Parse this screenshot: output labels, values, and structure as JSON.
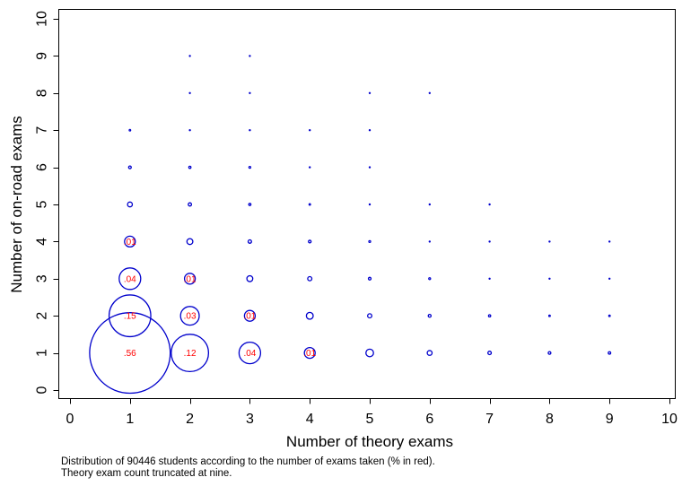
{
  "chart_data": {
    "type": "scatter",
    "subtype": "bubble",
    "xlabel": "Number of theory exams",
    "ylabel": "Number of on-road exams",
    "xlim": [
      0,
      10
    ],
    "ylim": [
      0,
      10
    ],
    "xticks": [
      "0",
      "1",
      "2",
      "3",
      "4",
      "5",
      "6",
      "7",
      "8",
      "9",
      "10"
    ],
    "yticks": [
      "0",
      "1",
      "2",
      "3",
      "4",
      "5",
      "6",
      "7",
      "8",
      "9",
      "10"
    ],
    "grid": false,
    "marker_color": "#0000cc",
    "label_color": "#ff0000",
    "points": [
      {
        "x": 1,
        "y": 1,
        "share": 0.56,
        "label": ".56"
      },
      {
        "x": 1,
        "y": 2,
        "share": 0.15,
        "label": ".15"
      },
      {
        "x": 1,
        "y": 3,
        "share": 0.04,
        "label": ".04"
      },
      {
        "x": 1,
        "y": 4,
        "share": 0.01,
        "label": ".01"
      },
      {
        "x": 1,
        "y": 5,
        "share": 0.002
      },
      {
        "x": 1,
        "y": 6,
        "share": 0.0006
      },
      {
        "x": 1,
        "y": 7,
        "share": 0.0002
      },
      {
        "x": 2,
        "y": 1,
        "share": 0.12,
        "label": ".12"
      },
      {
        "x": 2,
        "y": 2,
        "share": 0.03,
        "label": ".03"
      },
      {
        "x": 2,
        "y": 3,
        "share": 0.01,
        "label": ".01"
      },
      {
        "x": 2,
        "y": 4,
        "share": 0.003
      },
      {
        "x": 2,
        "y": 5,
        "share": 0.0009
      },
      {
        "x": 2,
        "y": 6,
        "share": 0.0004
      },
      {
        "x": 2,
        "y": 7,
        "share": 0.0001
      },
      {
        "x": 2,
        "y": 8,
        "share": 4e-05
      },
      {
        "x": 2,
        "y": 9,
        "share": 2e-05
      },
      {
        "x": 3,
        "y": 1,
        "share": 0.04,
        "label": ".04"
      },
      {
        "x": 3,
        "y": 2,
        "share": 0.01,
        "label": ".01"
      },
      {
        "x": 3,
        "y": 3,
        "share": 0.003
      },
      {
        "x": 3,
        "y": 4,
        "share": 0.001
      },
      {
        "x": 3,
        "y": 5,
        "share": 0.0004
      },
      {
        "x": 3,
        "y": 6,
        "share": 0.0003
      },
      {
        "x": 3,
        "y": 7,
        "share": 0.0001
      },
      {
        "x": 3,
        "y": 8,
        "share": 4e-05
      },
      {
        "x": 3,
        "y": 9,
        "share": 2e-05
      },
      {
        "x": 4,
        "y": 1,
        "share": 0.01,
        "label": ".01"
      },
      {
        "x": 4,
        "y": 2,
        "share": 0.004
      },
      {
        "x": 4,
        "y": 3,
        "share": 0.0015
      },
      {
        "x": 4,
        "y": 4,
        "share": 0.0006
      },
      {
        "x": 4,
        "y": 5,
        "share": 0.0002
      },
      {
        "x": 4,
        "y": 6,
        "share": 0.0001
      },
      {
        "x": 4,
        "y": 7,
        "share": 6e-05
      },
      {
        "x": 5,
        "y": 1,
        "share": 0.005
      },
      {
        "x": 5,
        "y": 2,
        "share": 0.0015
      },
      {
        "x": 5,
        "y": 3,
        "share": 0.0006
      },
      {
        "x": 5,
        "y": 4,
        "share": 0.0003
      },
      {
        "x": 5,
        "y": 5,
        "share": 0.0001
      },
      {
        "x": 5,
        "y": 6,
        "share": 3e-05
      },
      {
        "x": 5,
        "y": 7,
        "share": 2e-05
      },
      {
        "x": 5,
        "y": 8,
        "share": 1e-05
      },
      {
        "x": 6,
        "y": 1,
        "share": 0.002
      },
      {
        "x": 6,
        "y": 2,
        "share": 0.0007
      },
      {
        "x": 6,
        "y": 3,
        "share": 0.0003
      },
      {
        "x": 6,
        "y": 4,
        "share": 0.0001
      },
      {
        "x": 6,
        "y": 5,
        "share": 4e-05
      },
      {
        "x": 6,
        "y": 8,
        "share": 1e-05
      },
      {
        "x": 7,
        "y": 1,
        "share": 0.001
      },
      {
        "x": 7,
        "y": 2,
        "share": 0.0004
      },
      {
        "x": 7,
        "y": 3,
        "share": 0.0001
      },
      {
        "x": 7,
        "y": 4,
        "share": 4e-05
      },
      {
        "x": 7,
        "y": 5,
        "share": 2e-05
      },
      {
        "x": 8,
        "y": 1,
        "share": 0.0006
      },
      {
        "x": 8,
        "y": 2,
        "share": 0.0002
      },
      {
        "x": 8,
        "y": 3,
        "share": 4e-05
      },
      {
        "x": 8,
        "y": 4,
        "share": 2e-05
      },
      {
        "x": 9,
        "y": 1,
        "share": 0.0005
      },
      {
        "x": 9,
        "y": 2,
        "share": 0.0002
      },
      {
        "x": 9,
        "y": 3,
        "share": 3e-05
      },
      {
        "x": 9,
        "y": 4,
        "share": 2e-05
      }
    ]
  },
  "caption": {
    "line1": "Distribution of 90446 students according to the number of exams taken (% in red).",
    "line2": "Theory exam count truncated at nine."
  }
}
